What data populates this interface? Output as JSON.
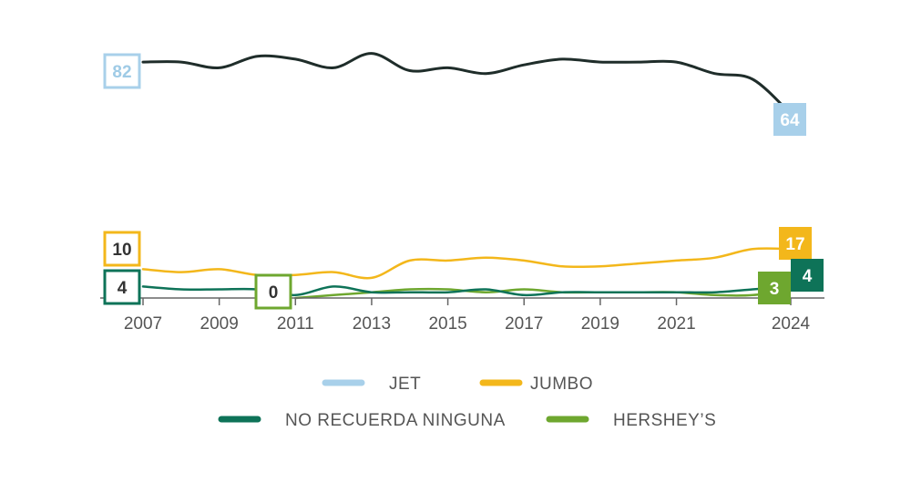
{
  "chart_data": {
    "type": "line",
    "x": [
      2007,
      2008,
      2009,
      2010,
      2011,
      2012,
      2013,
      2014,
      2015,
      2016,
      2017,
      2018,
      2019,
      2020,
      2021,
      2022,
      2023,
      2024
    ],
    "xticks": [
      "2007",
      "2009",
      "2011",
      "2013",
      "2015",
      "2017",
      "2019",
      "2021",
      "2024"
    ],
    "series": [
      {
        "name": "JET",
        "legend_color": "#a8d0ea",
        "line_color": "#1f2d2a",
        "values": [
          82,
          82,
          80,
          84,
          83,
          80,
          85,
          79,
          80,
          78,
          81,
          83,
          82,
          82,
          82,
          78,
          76,
          64
        ],
        "start_label": "82",
        "end_label": "64"
      },
      {
        "name": "JUMBO",
        "legend_color": "#f3b71b",
        "line_color": "#f3b71b",
        "values": [
          10,
          9,
          10,
          8,
          8,
          9,
          7,
          13,
          13,
          14,
          13,
          11,
          11,
          12,
          13,
          14,
          17,
          17
        ],
        "start_label": "10",
        "end_label": "17"
      },
      {
        "name": "NO RECUERDA NINGUNA",
        "legend_color": "#0e7358",
        "line_color": "#0e7358",
        "values": [
          4,
          3,
          3,
          3,
          1,
          4,
          2,
          2,
          2,
          3,
          1,
          2,
          2,
          2,
          2,
          2,
          3,
          4
        ],
        "start_label": "4",
        "end_label": "4"
      },
      {
        "name": "HERSHEY’S",
        "legend_color": "#6ea72f",
        "line_color": "#6ea72f",
        "values": [
          null,
          null,
          null,
          null,
          0,
          1,
          2,
          3,
          3,
          2,
          3,
          2,
          2,
          2,
          2,
          1,
          1,
          3
        ],
        "start_label": "0",
        "end_label": "3"
      }
    ],
    "ylim": [
      0,
      95
    ],
    "title": "",
    "xlabel": "",
    "ylabel": "",
    "legend_position": "bottom"
  }
}
